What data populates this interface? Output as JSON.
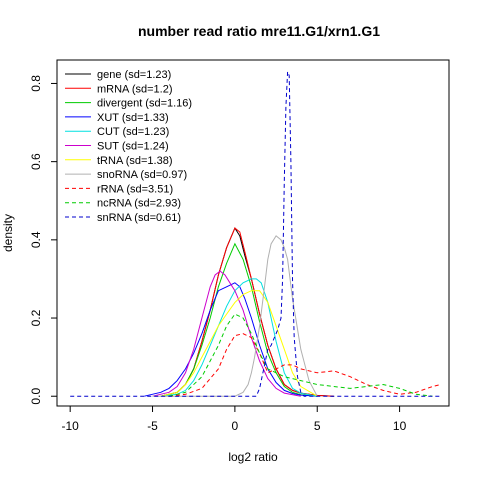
{
  "chart_data": {
    "type": "line",
    "title": "number read ratio mre11.G1/xrn1.G1",
    "xlabel": "log2 ratio",
    "ylabel": "density",
    "xlim": [
      -10.8,
      13.0
    ],
    "ylim": [
      -0.025,
      0.86
    ],
    "x_ticks": [
      -10,
      -5,
      0,
      5,
      10
    ],
    "y_ticks": [
      0.0,
      0.2,
      0.4,
      0.6,
      0.8
    ],
    "x_tick_labels": [
      "-10",
      "-5",
      "0",
      "5",
      "10"
    ],
    "y_tick_labels": [
      "0.0",
      "0.2",
      "0.4",
      "0.6",
      "0.8"
    ],
    "grid": false,
    "legend_position": "top-left",
    "series": [
      {
        "name": "gene (sd=1.23)",
        "color": "#000000",
        "dash": "solid",
        "x": [
          -4.5,
          -3.5,
          -3,
          -2.5,
          -2,
          -1.5,
          -1,
          -0.5,
          0,
          0.3,
          0.6,
          1,
          1.5,
          2,
          2.5,
          3,
          3.5,
          4,
          5,
          6
        ],
        "y": [
          0,
          0.01,
          0.03,
          0.07,
          0.14,
          0.22,
          0.31,
          0.38,
          0.43,
          0.41,
          0.36,
          0.3,
          0.21,
          0.13,
          0.07,
          0.03,
          0.015,
          0.008,
          0.002,
          0
        ]
      },
      {
        "name": "mRNA (sd=1.2)",
        "color": "#ff0000",
        "dash": "solid",
        "x": [
          -4.5,
          -3.5,
          -3,
          -2.5,
          -2,
          -1.5,
          -1,
          -0.5,
          0,
          0.3,
          0.6,
          1,
          1.5,
          2,
          2.5,
          3,
          3.5,
          4,
          5,
          6
        ],
        "y": [
          0,
          0.01,
          0.03,
          0.07,
          0.14,
          0.22,
          0.31,
          0.38,
          0.43,
          0.42,
          0.37,
          0.3,
          0.21,
          0.13,
          0.07,
          0.03,
          0.015,
          0.008,
          0.002,
          0
        ]
      },
      {
        "name": "divergent (sd=1.16)",
        "color": "#00cc00",
        "dash": "solid",
        "x": [
          -4.5,
          -3.5,
          -3,
          -2.5,
          -2,
          -1.5,
          -1,
          -0.5,
          0,
          0.5,
          1,
          1.5,
          2,
          2.5,
          3,
          3.5,
          4,
          5
        ],
        "y": [
          0,
          0.01,
          0.03,
          0.07,
          0.13,
          0.2,
          0.28,
          0.34,
          0.39,
          0.35,
          0.28,
          0.19,
          0.11,
          0.06,
          0.025,
          0.01,
          0.004,
          0
        ]
      },
      {
        "name": "XUT (sd=1.33)",
        "color": "#0000ff",
        "dash": "solid",
        "x": [
          -5.5,
          -4.5,
          -4,
          -3.5,
          -3,
          -2.5,
          -2,
          -1.5,
          -1,
          -0.5,
          0,
          0.3,
          0.6,
          1,
          1.5,
          2,
          2.5,
          3,
          3.5,
          4,
          5
        ],
        "y": [
          0,
          0.01,
          0.02,
          0.04,
          0.07,
          0.11,
          0.16,
          0.22,
          0.27,
          0.28,
          0.29,
          0.28,
          0.25,
          0.2,
          0.13,
          0.07,
          0.035,
          0.015,
          0.007,
          0.003,
          0
        ]
      },
      {
        "name": "CUT (sd=1.23)",
        "color": "#00e0e0",
        "dash": "solid",
        "x": [
          -4.5,
          -3.5,
          -3,
          -2.5,
          -2,
          -1.5,
          -1,
          -0.5,
          0,
          0.5,
          1,
          1.3,
          1.6,
          2,
          2.5,
          3,
          3.5,
          4,
          5
        ],
        "y": [
          0,
          0.005,
          0.015,
          0.04,
          0.08,
          0.13,
          0.18,
          0.23,
          0.27,
          0.29,
          0.3,
          0.3,
          0.29,
          0.24,
          0.14,
          0.06,
          0.02,
          0.008,
          0
        ]
      },
      {
        "name": "SUT (sd=1.24)",
        "color": "#cc00cc",
        "dash": "solid",
        "x": [
          -5,
          -4,
          -3.5,
          -3,
          -2.5,
          -2,
          -1.5,
          -1.2,
          -0.9,
          -0.6,
          -0.3,
          0,
          0.5,
          1,
          1.5,
          2,
          2.5,
          3,
          4
        ],
        "y": [
          0,
          0.01,
          0.025,
          0.06,
          0.12,
          0.2,
          0.28,
          0.31,
          0.32,
          0.31,
          0.29,
          0.27,
          0.22,
          0.15,
          0.09,
          0.045,
          0.02,
          0.008,
          0
        ]
      },
      {
        "name": "tRNA (sd=1.38)",
        "color": "#ffff00",
        "dash": "solid",
        "x": [
          -4.5,
          -3.5,
          -3,
          -2.5,
          -2,
          -1.5,
          -1,
          -0.5,
          0,
          0.5,
          1,
          1.5,
          2,
          2.5,
          3,
          3.5,
          4,
          5
        ],
        "y": [
          0,
          0.01,
          0.03,
          0.06,
          0.1,
          0.14,
          0.18,
          0.21,
          0.24,
          0.26,
          0.27,
          0.27,
          0.24,
          0.18,
          0.12,
          0.06,
          0.025,
          0
        ]
      },
      {
        "name": "snoRNA (sd=0.97)",
        "color": "#b0b0b0",
        "dash": "solid",
        "x": [
          -5,
          0,
          0.5,
          0.8,
          1,
          1.2,
          1.5,
          1.8,
          2,
          2.2,
          2.5,
          2.8,
          3,
          3.2,
          3.5,
          4,
          4.5,
          5
        ],
        "y": [
          0,
          0,
          0.01,
          0.03,
          0.06,
          0.1,
          0.18,
          0.28,
          0.35,
          0.39,
          0.41,
          0.4,
          0.38,
          0.35,
          0.25,
          0.12,
          0.04,
          0
        ]
      },
      {
        "name": "rRNA (sd=3.51)",
        "color": "#ff0000",
        "dash": "dashed",
        "x": [
          -4,
          -3,
          -2,
          -1,
          -0.5,
          0,
          0.5,
          1,
          1.5,
          2,
          2.5,
          3,
          3.5,
          4,
          5,
          6,
          7,
          8,
          9,
          10,
          11,
          12,
          12.5
        ],
        "y": [
          0,
          0.005,
          0.02,
          0.07,
          0.12,
          0.155,
          0.16,
          0.15,
          0.11,
          0.06,
          0.07,
          0.08,
          0.08,
          0.07,
          0.06,
          0.065,
          0.05,
          0.03,
          0.015,
          0.005,
          0.01,
          0.025,
          0.03
        ]
      },
      {
        "name": "ncRNA (sd=2.93)",
        "color": "#00cc00",
        "dash": "dashed",
        "x": [
          -4,
          -3,
          -2,
          -1,
          -0.5,
          0,
          0.5,
          1,
          1.5,
          2,
          3,
          4,
          5,
          6,
          7,
          8,
          9,
          10,
          11,
          12
        ],
        "y": [
          0,
          0.01,
          0.05,
          0.13,
          0.18,
          0.21,
          0.2,
          0.16,
          0.11,
          0.07,
          0.05,
          0.04,
          0.03,
          0.025,
          0.02,
          0.025,
          0.03,
          0.02,
          0.005,
          0
        ]
      },
      {
        "name": "snRNA (sd=0.61)",
        "color": "#0000cc",
        "dash": "dashed",
        "x": [
          -10,
          1.3,
          1.5,
          1.7,
          1.9,
          2.0,
          2.2,
          2.4,
          2.6,
          2.8,
          2.9,
          3.0,
          3.1,
          3.2,
          3.3,
          3.4,
          3.5,
          3.6,
          3.8,
          4.0,
          4.2,
          12.5
        ],
        "y": [
          0,
          0,
          0.02,
          0.06,
          0.1,
          0.12,
          0.13,
          0.15,
          0.17,
          0.2,
          0.3,
          0.55,
          0.74,
          0.83,
          0.82,
          0.6,
          0.3,
          0.15,
          0.05,
          0.01,
          0,
          0
        ]
      }
    ]
  }
}
